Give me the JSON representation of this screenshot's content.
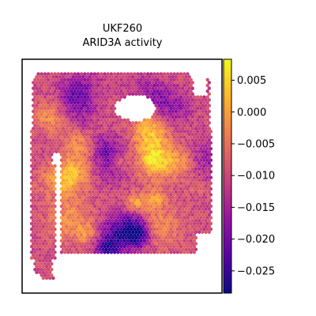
{
  "chart_data": {
    "type": "heatmap",
    "title": "UKF260",
    "subtitle": "ARID3A activity",
    "xlabel": "",
    "ylabel": "",
    "colormap": [
      "#0d0887",
      "#5c01a6",
      "#9c179e",
      "#cc4778",
      "#ed7953",
      "#fdb42f",
      "#f0f921"
    ],
    "colorbar": {
      "min": -0.0285,
      "max": 0.0083,
      "ticks": [
        0.005,
        0.0,
        -0.005,
        -0.01,
        -0.015,
        -0.02,
        -0.025
      ],
      "tick_labels": [
        "0.005",
        "0.000",
        "−0.005",
        "−0.010",
        "−0.015",
        "−0.020",
        "−0.025"
      ]
    },
    "grid": false,
    "legend": "colorbar-right",
    "points_note": "hexagonal spatial spots; values span the colorbar range"
  }
}
